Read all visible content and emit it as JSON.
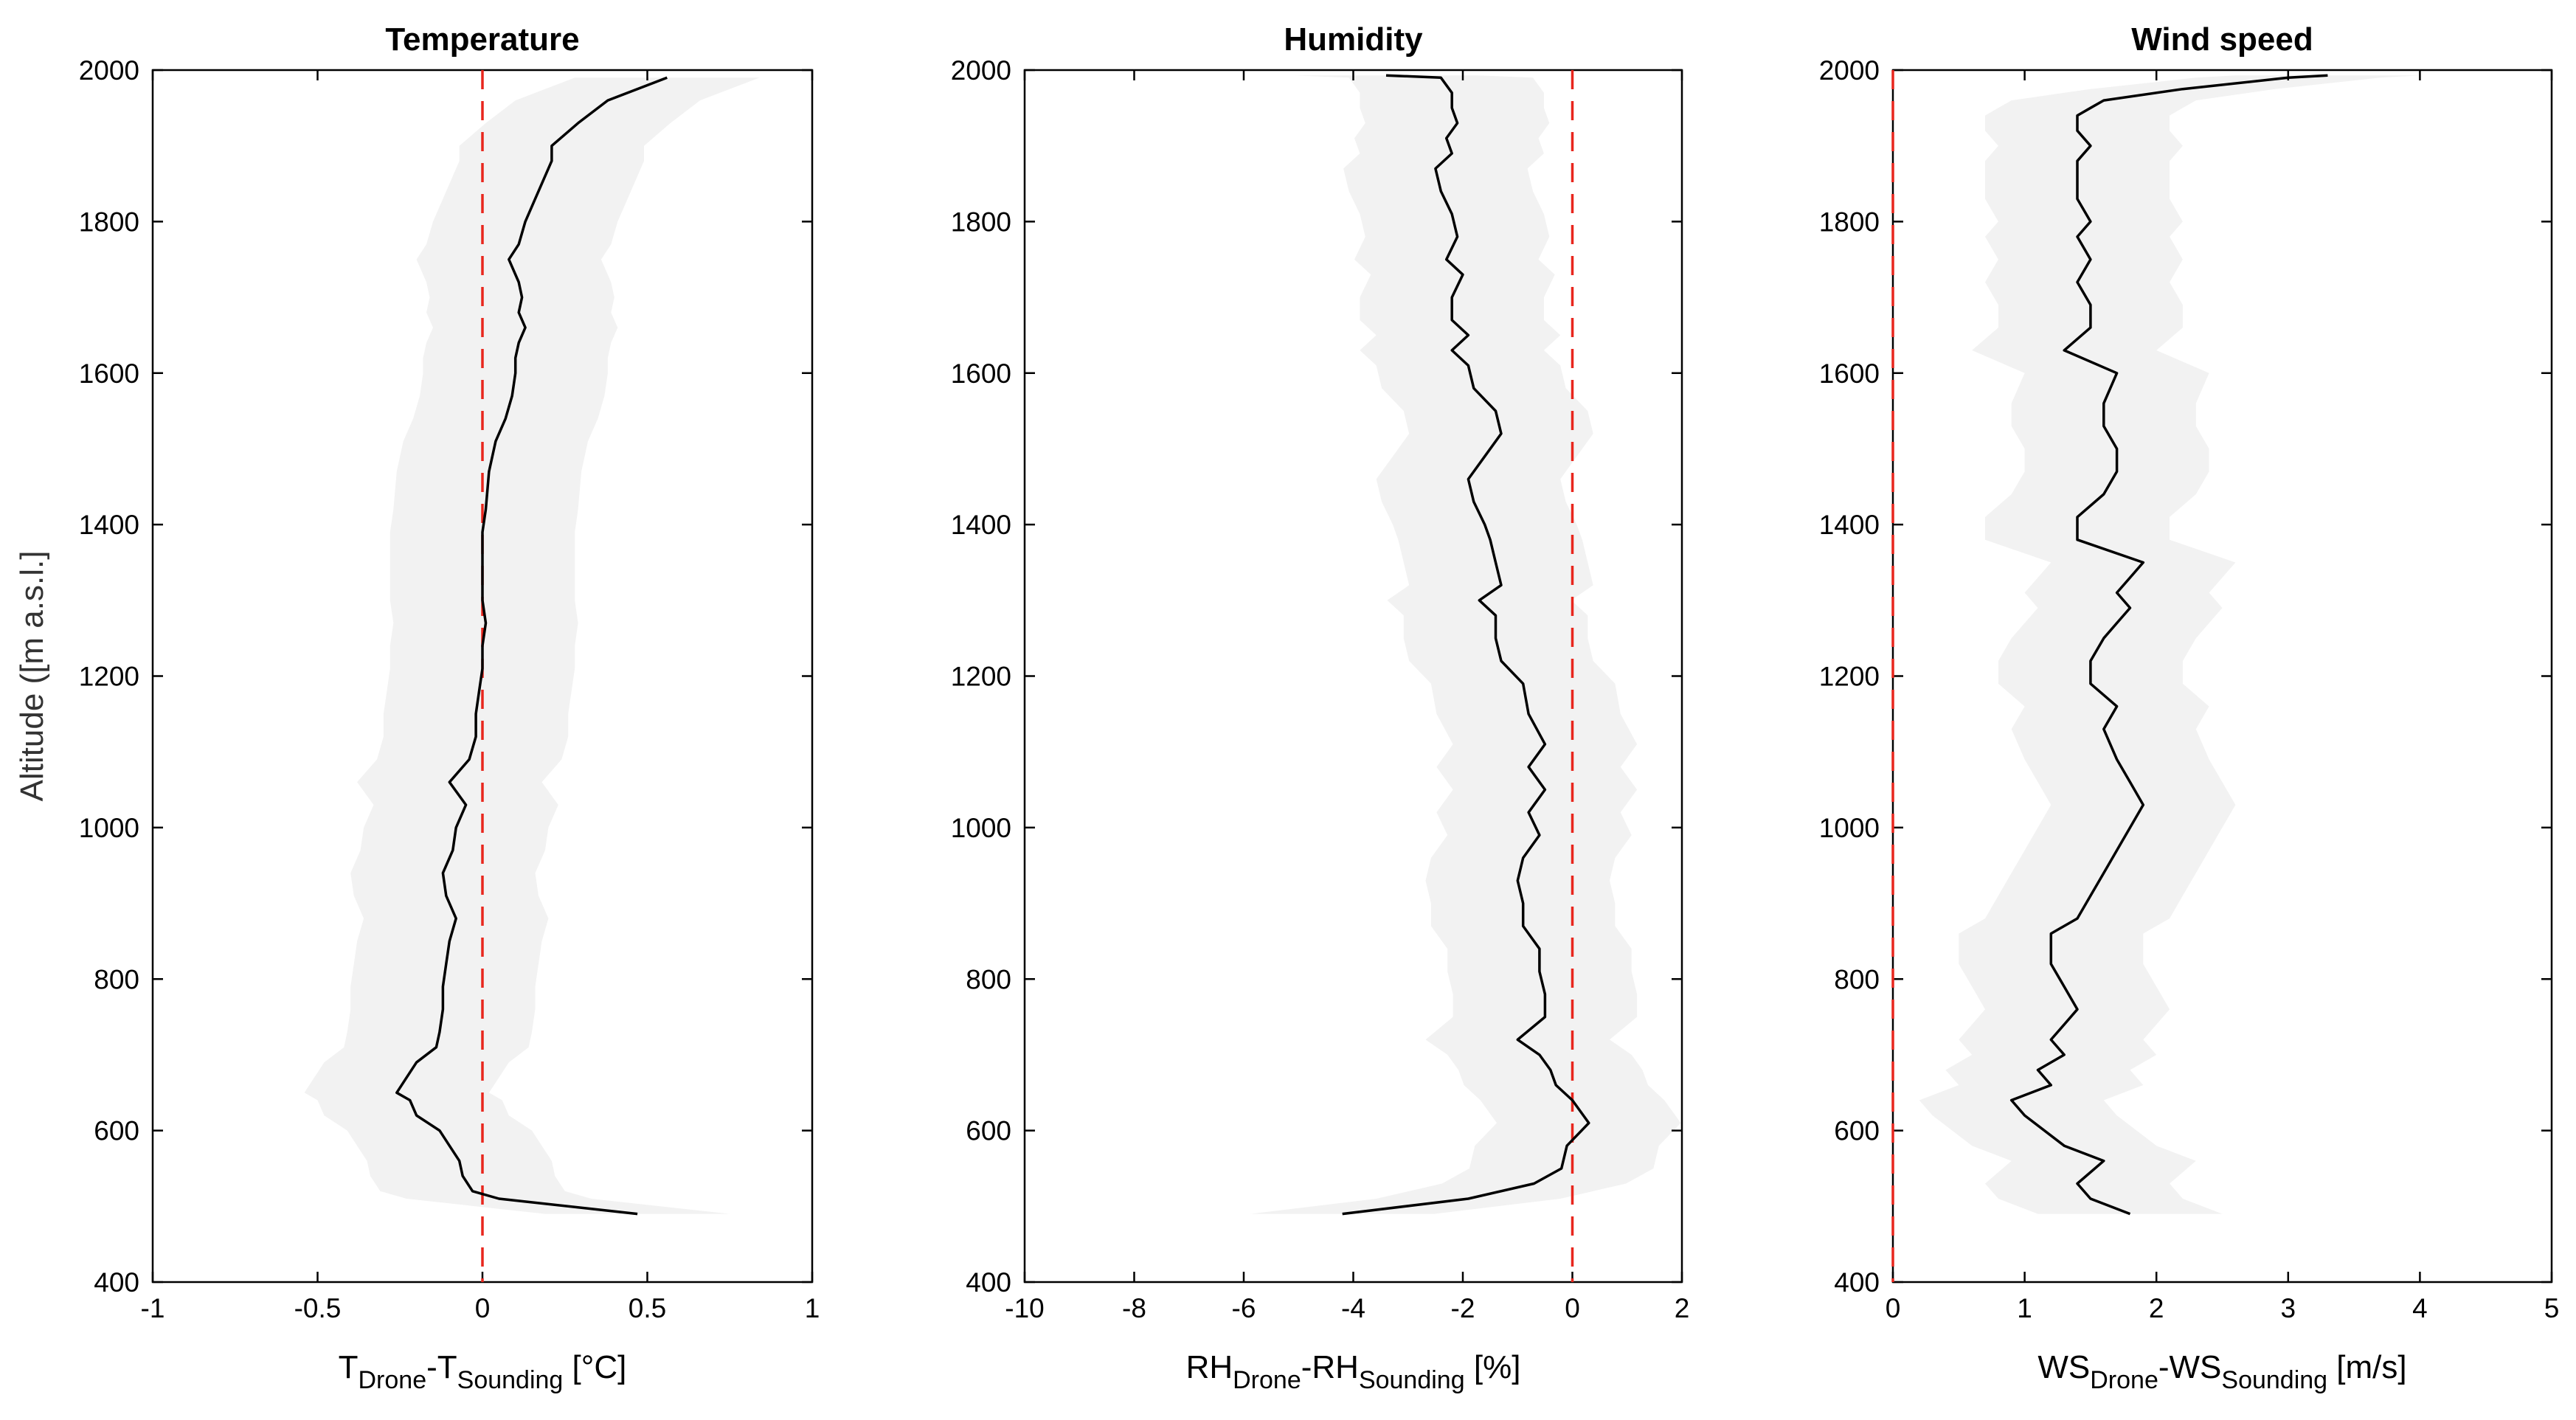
{
  "chart_data": [
    {
      "type": "line",
      "title": "Temperature",
      "ylabel": "Altitude ([m a.s.l.]",
      "xlabel_parts": [
        {
          "text": "T",
          "sub": false
        },
        {
          "text": "Drone",
          "sub": true
        },
        {
          "text": "-T",
          "sub": false
        },
        {
          "text": "Sounding",
          "sub": true
        },
        {
          "text": " [°C]",
          "sub": false
        }
      ],
      "xlim": [
        -1,
        1
      ],
      "ylim": [
        400,
        2000
      ],
      "xticks": [
        -1,
        -0.5,
        0,
        0.5,
        1
      ],
      "yticks": [
        400,
        600,
        800,
        1000,
        1200,
        1400,
        1600,
        1800,
        2000
      ],
      "reference_line": {
        "x": 0,
        "color": "#e8261d",
        "style": "dashed"
      },
      "series": [
        {
          "color": "#000000",
          "x": [
            0.47,
            0.05,
            -0.03,
            -0.06,
            -0.07,
            -0.1,
            -0.13,
            -0.2,
            -0.22,
            -0.26,
            -0.23,
            -0.2,
            -0.14,
            -0.13,
            -0.12,
            -0.12,
            -0.11,
            -0.1,
            -0.08,
            -0.11,
            -0.12,
            -0.09,
            -0.08,
            -0.05,
            -0.1,
            -0.04,
            -0.02,
            -0.02,
            -0.01,
            0.0,
            0.0,
            0.01,
            0.0,
            0.0,
            0.0,
            0.0,
            0.01,
            0.02,
            0.04,
            0.07,
            0.09,
            0.1,
            0.1,
            0.11,
            0.13,
            0.11,
            0.12,
            0.11,
            0.08,
            0.11,
            0.13,
            0.16,
            0.19,
            0.21,
            0.21,
            0.29,
            0.38,
            0.56
          ],
          "y": [
            490,
            510,
            520,
            540,
            560,
            580,
            600,
            620,
            640,
            650,
            670,
            690,
            710,
            730,
            760,
            790,
            820,
            850,
            880,
            910,
            940,
            970,
            1000,
            1030,
            1060,
            1090,
            1120,
            1150,
            1180,
            1210,
            1240,
            1270,
            1300,
            1330,
            1360,
            1390,
            1420,
            1470,
            1510,
            1540,
            1570,
            1600,
            1620,
            1640,
            1660,
            1680,
            1700,
            1720,
            1750,
            1770,
            1800,
            1830,
            1860,
            1880,
            1900,
            1930,
            1960,
            1990
          ]
        }
      ]
    },
    {
      "type": "line",
      "title": "Humidity",
      "xlabel_parts": [
        {
          "text": "RH",
          "sub": false
        },
        {
          "text": "Drone",
          "sub": true
        },
        {
          "text": "-RH",
          "sub": false
        },
        {
          "text": "Sounding",
          "sub": true
        },
        {
          "text": " [%]",
          "sub": false
        }
      ],
      "xlim": [
        -10,
        2
      ],
      "ylim": [
        400,
        2000
      ],
      "xticks": [
        -10,
        -8,
        -6,
        -4,
        -2,
        0,
        2
      ],
      "yticks": [
        400,
        600,
        800,
        1000,
        1200,
        1400,
        1600,
        1800,
        2000
      ],
      "reference_line": {
        "x": 0,
        "color": "#e8261d",
        "style": "dashed"
      },
      "series": [
        {
          "color": "#000000",
          "x": [
            -4.2,
            -1.9,
            -0.7,
            -0.2,
            -0.1,
            0.3,
            0.0,
            -0.3,
            -0.4,
            -0.6,
            -1.0,
            -0.5,
            -0.5,
            -0.6,
            -0.6,
            -0.9,
            -0.9,
            -1.0,
            -0.9,
            -0.6,
            -0.8,
            -0.5,
            -0.8,
            -0.5,
            -0.8,
            -0.9,
            -1.3,
            -1.4,
            -1.4,
            -1.7,
            -1.3,
            -1.4,
            -1.5,
            -1.6,
            -1.8,
            -1.9,
            -1.6,
            -1.3,
            -1.4,
            -1.8,
            -1.9,
            -2.2,
            -1.9,
            -2.2,
            -2.2,
            -2.0,
            -2.3,
            -2.1,
            -2.2,
            -2.4,
            -2.5,
            -2.2,
            -2.3,
            -2.1,
            -2.2,
            -2.2,
            -2.4,
            -3.4
          ],
          "y": [
            490,
            510,
            530,
            550,
            580,
            610,
            640,
            660,
            680,
            700,
            720,
            750,
            780,
            810,
            840,
            870,
            900,
            930,
            960,
            990,
            1020,
            1050,
            1080,
            1110,
            1150,
            1190,
            1220,
            1250,
            1280,
            1300,
            1320,
            1350,
            1380,
            1400,
            1430,
            1460,
            1490,
            1520,
            1550,
            1580,
            1610,
            1630,
            1650,
            1670,
            1700,
            1730,
            1750,
            1780,
            1810,
            1840,
            1870,
            1890,
            1910,
            1930,
            1950,
            1970,
            1990,
            1993
          ]
        }
      ]
    },
    {
      "type": "line",
      "title": "Wind speed",
      "xlabel_parts": [
        {
          "text": "WS",
          "sub": false
        },
        {
          "text": "Drone",
          "sub": true
        },
        {
          "text": "-WS",
          "sub": false
        },
        {
          "text": "Sounding",
          "sub": true
        },
        {
          "text": " [m/s]",
          "sub": false
        }
      ],
      "xlim": [
        0,
        5
      ],
      "ylim": [
        400,
        2000
      ],
      "xticks": [
        0,
        1,
        2,
        3,
        4,
        5
      ],
      "yticks": [
        400,
        600,
        800,
        1000,
        1200,
        1400,
        1600,
        1800,
        2000
      ],
      "reference_line": {
        "x": 0,
        "color": "#e8261d",
        "style": "dashed"
      },
      "series": [
        {
          "color": "#000000",
          "x": [
            1.8,
            1.5,
            1.4,
            1.6,
            1.3,
            1.0,
            0.9,
            1.2,
            1.1,
            1.3,
            1.2,
            1.3,
            1.4,
            1.3,
            1.2,
            1.2,
            1.4,
            1.5,
            1.6,
            1.7,
            1.8,
            1.9,
            1.8,
            1.7,
            1.6,
            1.7,
            1.5,
            1.5,
            1.6,
            1.7,
            1.8,
            1.7,
            1.8,
            1.9,
            1.4,
            1.4,
            1.6,
            1.7,
            1.7,
            1.6,
            1.6,
            1.7,
            1.3,
            1.5,
            1.5,
            1.4,
            1.5,
            1.4,
            1.5,
            1.4,
            1.4,
            1.4,
            1.5,
            1.4,
            1.4,
            1.5,
            1.6,
            2.2,
            3.0,
            3.3
          ],
          "y": [
            490,
            510,
            530,
            560,
            580,
            620,
            640,
            660,
            680,
            700,
            720,
            740,
            760,
            790,
            820,
            860,
            880,
            910,
            940,
            970,
            1000,
            1030,
            1060,
            1090,
            1130,
            1160,
            1190,
            1220,
            1250,
            1270,
            1290,
            1310,
            1330,
            1350,
            1380,
            1410,
            1440,
            1470,
            1500,
            1530,
            1560,
            1600,
            1630,
            1660,
            1690,
            1720,
            1750,
            1780,
            1800,
            1830,
            1860,
            1880,
            1900,
            1920,
            1940,
            1950,
            1960,
            1975,
            1990,
            1993
          ]
        }
      ]
    }
  ]
}
